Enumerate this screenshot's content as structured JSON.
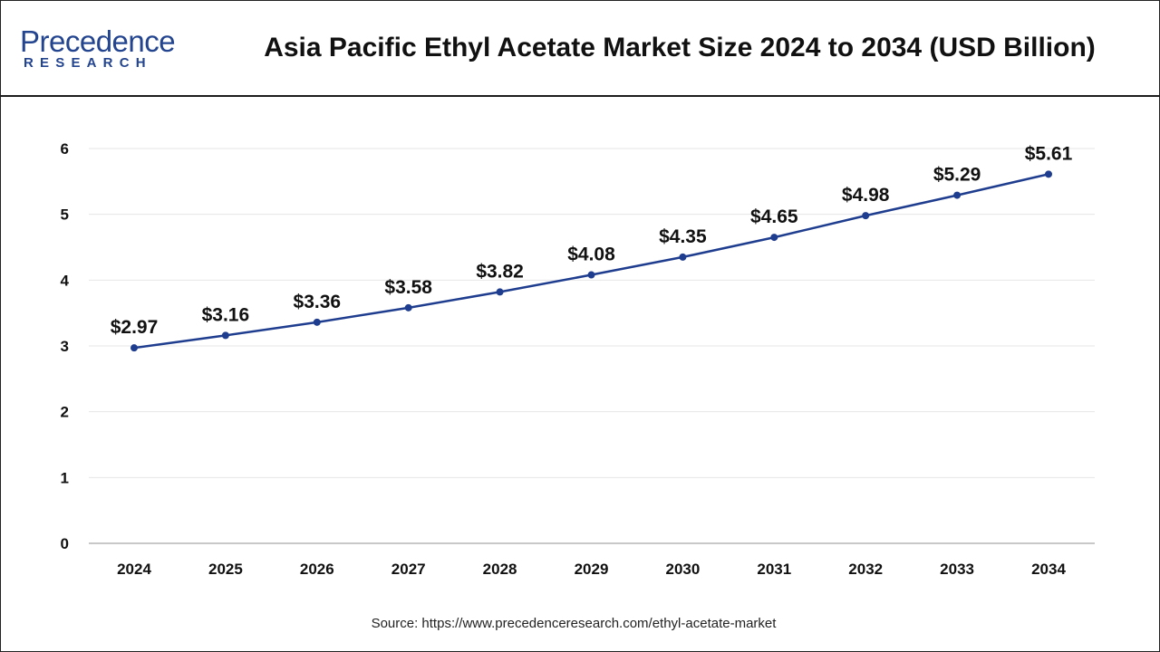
{
  "header": {
    "logo_name": "Precedence",
    "logo_sub": "RESEARCH"
  },
  "chart_data": {
    "type": "line",
    "title": "Asia Pacific Ethyl Acetate Market Size 2024 to 2034 (USD Billion)",
    "categories": [
      "2024",
      "2025",
      "2026",
      "2027",
      "2028",
      "2029",
      "2030",
      "2031",
      "2032",
      "2033",
      "2034"
    ],
    "values": [
      2.97,
      3.16,
      3.36,
      3.58,
      3.82,
      4.08,
      4.35,
      4.65,
      4.98,
      5.29,
      5.61
    ],
    "data_labels": [
      "$2.97",
      "$3.16",
      "$3.36",
      "$3.58",
      "$3.82",
      "$4.08",
      "$4.35",
      "$4.65",
      "$4.98",
      "$5.29",
      "$5.61"
    ],
    "ylim": [
      0,
      6
    ],
    "yticks": [
      "0",
      "1",
      "2",
      "3",
      "4",
      "5",
      "6"
    ],
    "grid": true,
    "legend": "none",
    "line_color": "#1f3d8f",
    "grid_color": "#e6e6e6"
  },
  "footer": {
    "source": "Source: https://www.precedenceresearch.com/ethyl-acetate-market"
  }
}
